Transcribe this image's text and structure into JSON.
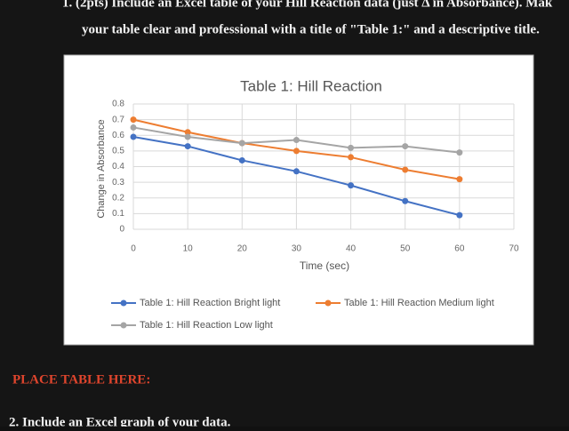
{
  "document": {
    "line1": "1.   (2pts) Include an Excel table of your Hill Reaction data (just Δ in Absorbance). Mak",
    "line2": "your table clear and professional with a title of \"Table 1:\" and a descriptive title.",
    "placeholder": "PLACE TABLE HERE:",
    "line3": "2. Include an Excel graph of your data."
  },
  "chart_data": {
    "type": "line",
    "title": "Table 1: Hill Reaction",
    "x_label": "Time (sec)",
    "y_label": "Change in Absorbance",
    "x": [
      0,
      10,
      20,
      30,
      40,
      50,
      60
    ],
    "series": [
      {
        "name": "Table 1: Hill Reaction Bright light",
        "color": "#4472c4",
        "values": [
          0.59,
          0.53,
          0.44,
          0.37,
          0.28,
          0.18,
          0.09
        ]
      },
      {
        "name": "Table 1: Hill Reaction Medium light",
        "color": "#ed7d31",
        "values": [
          0.7,
          0.62,
          0.55,
          0.5,
          0.46,
          0.38,
          0.32
        ]
      },
      {
        "name": "Table 1: Hill Reaction Low light",
        "color": "#a5a5a5",
        "values": [
          0.65,
          0.59,
          0.55,
          0.57,
          0.52,
          0.53,
          0.49
        ]
      }
    ],
    "xlim": [
      0,
      70
    ],
    "xticks": [
      0,
      10,
      20,
      30,
      40,
      50,
      60,
      70
    ],
    "ylim": [
      0,
      0.8
    ],
    "yticks": [
      0,
      0.1,
      0.2,
      0.3,
      0.4,
      0.5,
      0.6,
      0.7,
      0.8
    ],
    "grid": true,
    "legend": "bottom"
  }
}
